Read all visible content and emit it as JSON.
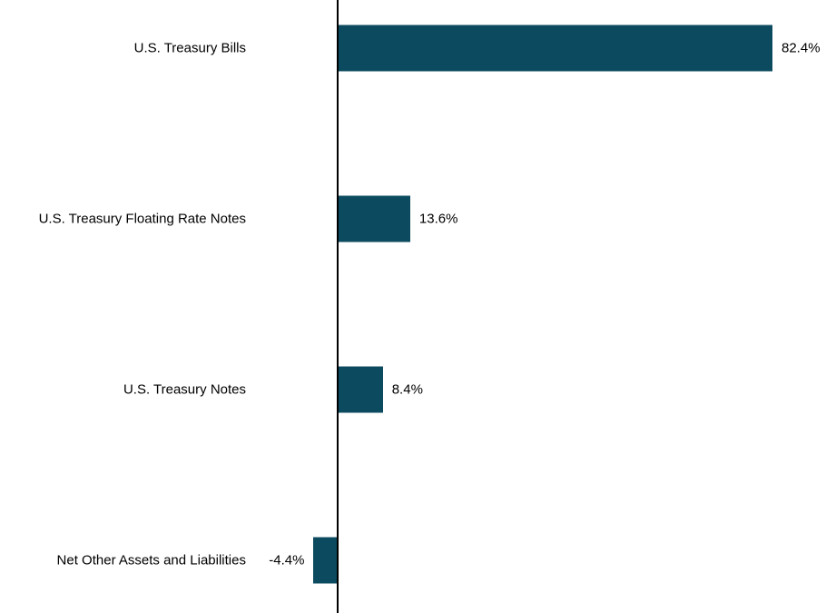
{
  "chart_data": {
    "type": "bar",
    "orientation": "horizontal",
    "title": "",
    "xlabel": "",
    "ylabel": "",
    "categories": [
      "U.S. Treasury Bills",
      "U.S. Treasury Floating Rate Notes",
      "U.S. Treasury Notes",
      "Net Other Assets and Liabilities"
    ],
    "values": [
      82.4,
      13.6,
      8.4,
      -4.4
    ],
    "value_labels": [
      "82.4%",
      "13.6%",
      "8.4%",
      "-4.4%"
    ],
    "unit": "%",
    "xlim": [
      -4.4,
      82.4
    ],
    "grid": false,
    "legend": null,
    "bar_color": "#0c4b5f",
    "axis_color": "#000000",
    "text_color": "#000000",
    "background_color": "#ffffff"
  }
}
